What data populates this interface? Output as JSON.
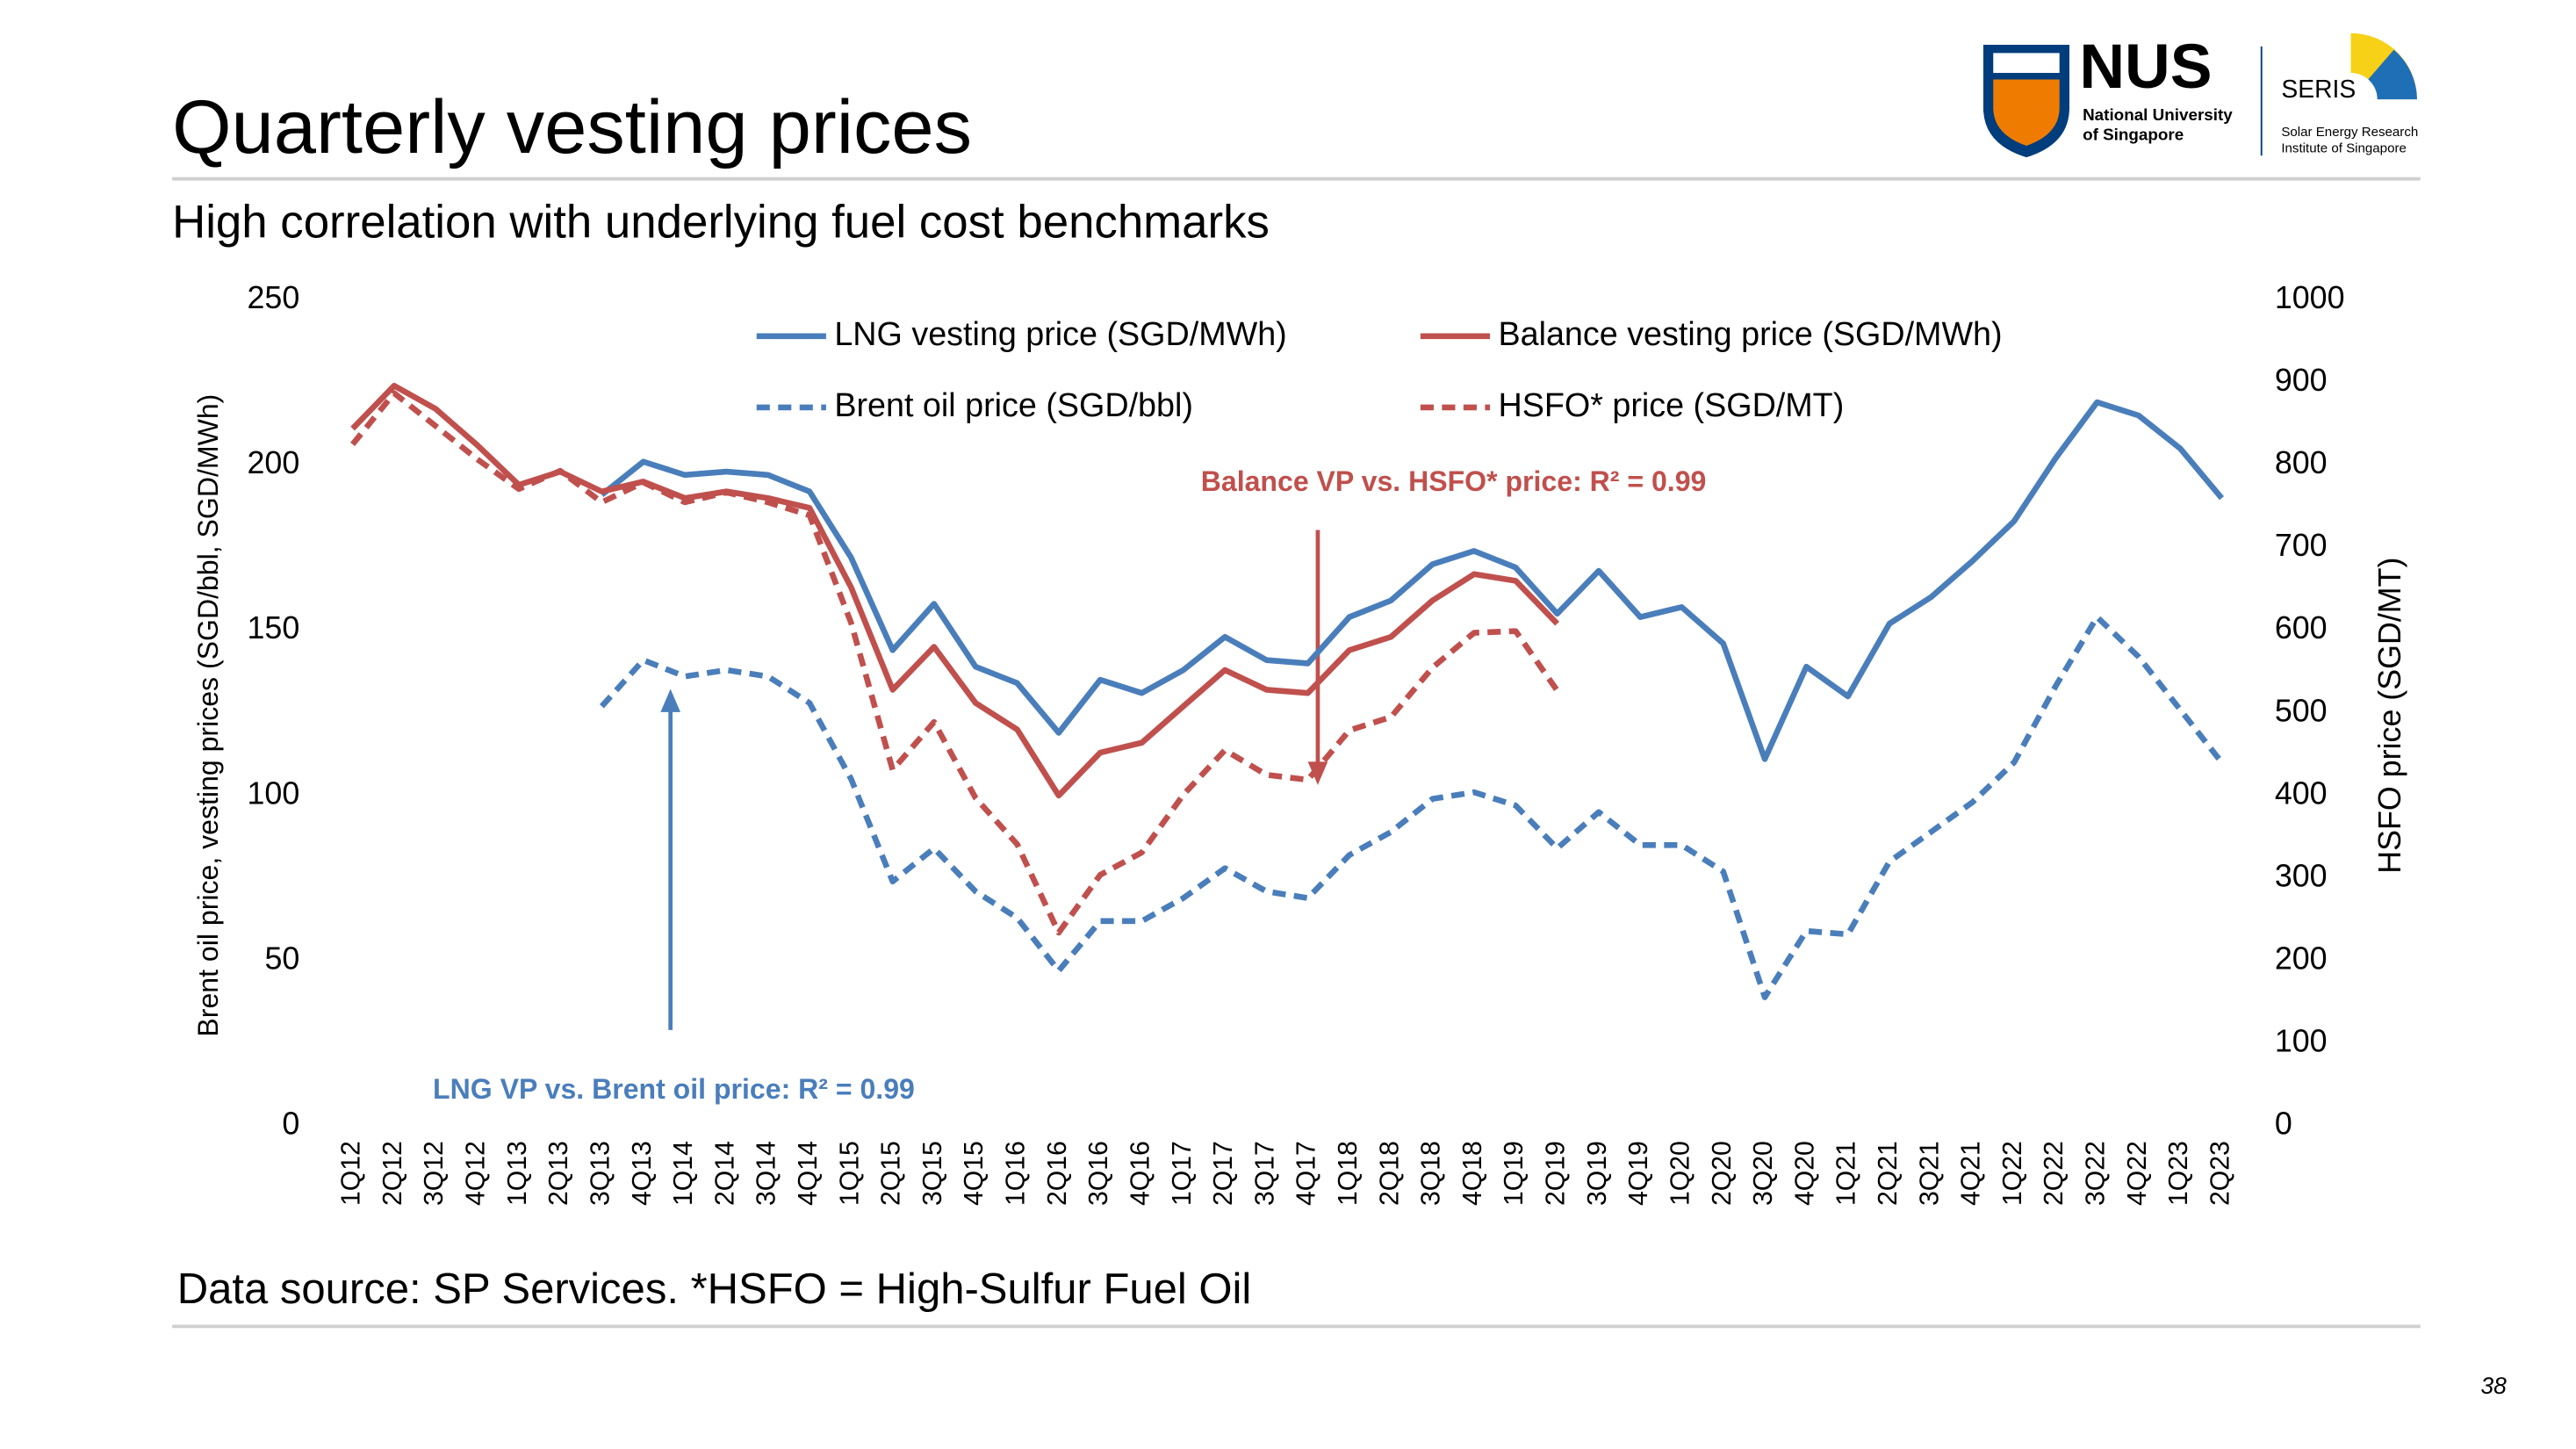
{
  "slide": {
    "title": "Quarterly vesting prices",
    "subtitle": "High correlation with underlying fuel cost benchmarks",
    "footnote": "Data source: SP Services.  *HSFO = High-Sulfur Fuel Oil",
    "page_number": "38",
    "logo_nus": "NUS",
    "logo_nus_sub1": "National University",
    "logo_nus_sub2": "of Singapore",
    "logo_seris": "SERIS",
    "logo_seris_sub1": "Solar Energy Research",
    "logo_seris_sub2": "Institute of Singapore"
  },
  "chart_data": {
    "type": "line",
    "ylabel": "Brent oil price, vesting prices (SGD/bbl, SGD/MWh)",
    "y2label": "HSFO price (SGD/MT)",
    "categories": [
      "1Q12",
      "2Q12",
      "3Q12",
      "4Q12",
      "1Q13",
      "2Q13",
      "3Q13",
      "4Q13",
      "1Q14",
      "2Q14",
      "3Q14",
      "4Q14",
      "1Q15",
      "2Q15",
      "3Q15",
      "4Q15",
      "1Q16",
      "2Q16",
      "3Q16",
      "4Q16",
      "1Q17",
      "2Q17",
      "3Q17",
      "4Q17",
      "1Q18",
      "2Q18",
      "3Q18",
      "4Q18",
      "1Q19",
      "2Q19",
      "3Q19",
      "4Q19",
      "1Q20",
      "2Q20",
      "3Q20",
      "4Q20",
      "1Q21",
      "2Q21",
      "3Q21",
      "4Q21",
      "1Q22",
      "2Q22",
      "3Q22",
      "4Q22",
      "1Q23",
      "2Q23"
    ],
    "ylim": [
      0,
      250
    ],
    "yticks": [
      0,
      50,
      100,
      150,
      200,
      250
    ],
    "y2lim": [
      0,
      1000
    ],
    "y2ticks": [
      0,
      100,
      200,
      300,
      400,
      500,
      600,
      700,
      800,
      900,
      1000
    ],
    "series": [
      {
        "name": "LNG vesting price (SGD/MWh)",
        "color": "#4a7ebb",
        "line_style": "solid",
        "values": [
          null,
          null,
          null,
          null,
          null,
          null,
          191,
          201,
          197,
          198,
          197,
          192,
          172,
          144,
          158,
          139,
          134,
          119,
          135,
          131,
          138,
          148,
          141,
          140,
          154,
          159,
          170,
          174,
          169,
          155,
          168,
          154,
          157,
          146,
          111,
          139,
          130,
          152,
          160,
          171,
          183,
          202,
          219,
          215,
          205,
          190
        ]
      },
      {
        "name": "Balance vesting price (SGD/MWh)",
        "color": "#c0504d",
        "line_style": "solid",
        "values": [
          211,
          224,
          217,
          206,
          194,
          198,
          192,
          195,
          190,
          192,
          190,
          187,
          163,
          132,
          145,
          128,
          120,
          100,
          113,
          116,
          127,
          138,
          132,
          131,
          144,
          148,
          159,
          167,
          165,
          152,
          null,
          null,
          null,
          null,
          null,
          null,
          null,
          null,
          null,
          null,
          null,
          null,
          null,
          null,
          null,
          null
        ]
      },
      {
        "name": "Brent oil price (SGD/bbl)",
        "color": "#4a7ebb",
        "line_style": "dashed",
        "values": [
          null,
          null,
          null,
          null,
          null,
          null,
          127,
          141,
          136,
          138,
          136,
          128,
          105,
          74,
          84,
          71,
          63,
          47,
          62,
          62,
          69,
          78,
          71,
          69,
          82,
          89,
          99,
          101,
          97,
          84,
          95,
          85,
          85,
          77,
          39,
          59,
          58,
          80,
          89,
          98,
          110,
          133,
          154,
          142,
          126,
          110
        ]
      },
      {
        "name": "HSFO* price (SGD/MT)",
        "color": "#c0504d",
        "line_style": "dashed",
        "axis": "y2",
        "values": [
          825,
          887,
          847,
          807,
          771,
          793,
          755,
          779,
          755,
          767,
          755,
          739,
          609,
          431,
          489,
          397,
          341,
          234,
          304,
          331,
          401,
          455,
          425,
          419,
          479,
          495,
          555,
          597,
          599,
          527,
          null,
          null,
          null,
          null,
          null,
          null,
          null,
          null,
          null,
          null,
          null,
          null,
          null,
          null,
          null,
          null
        ]
      }
    ],
    "annotations": [
      "Balance VP vs. HSFO* price: R² = 0.99",
      "LNG VP vs. Brent oil price: R² = 0.99"
    ],
    "legend": "top"
  }
}
